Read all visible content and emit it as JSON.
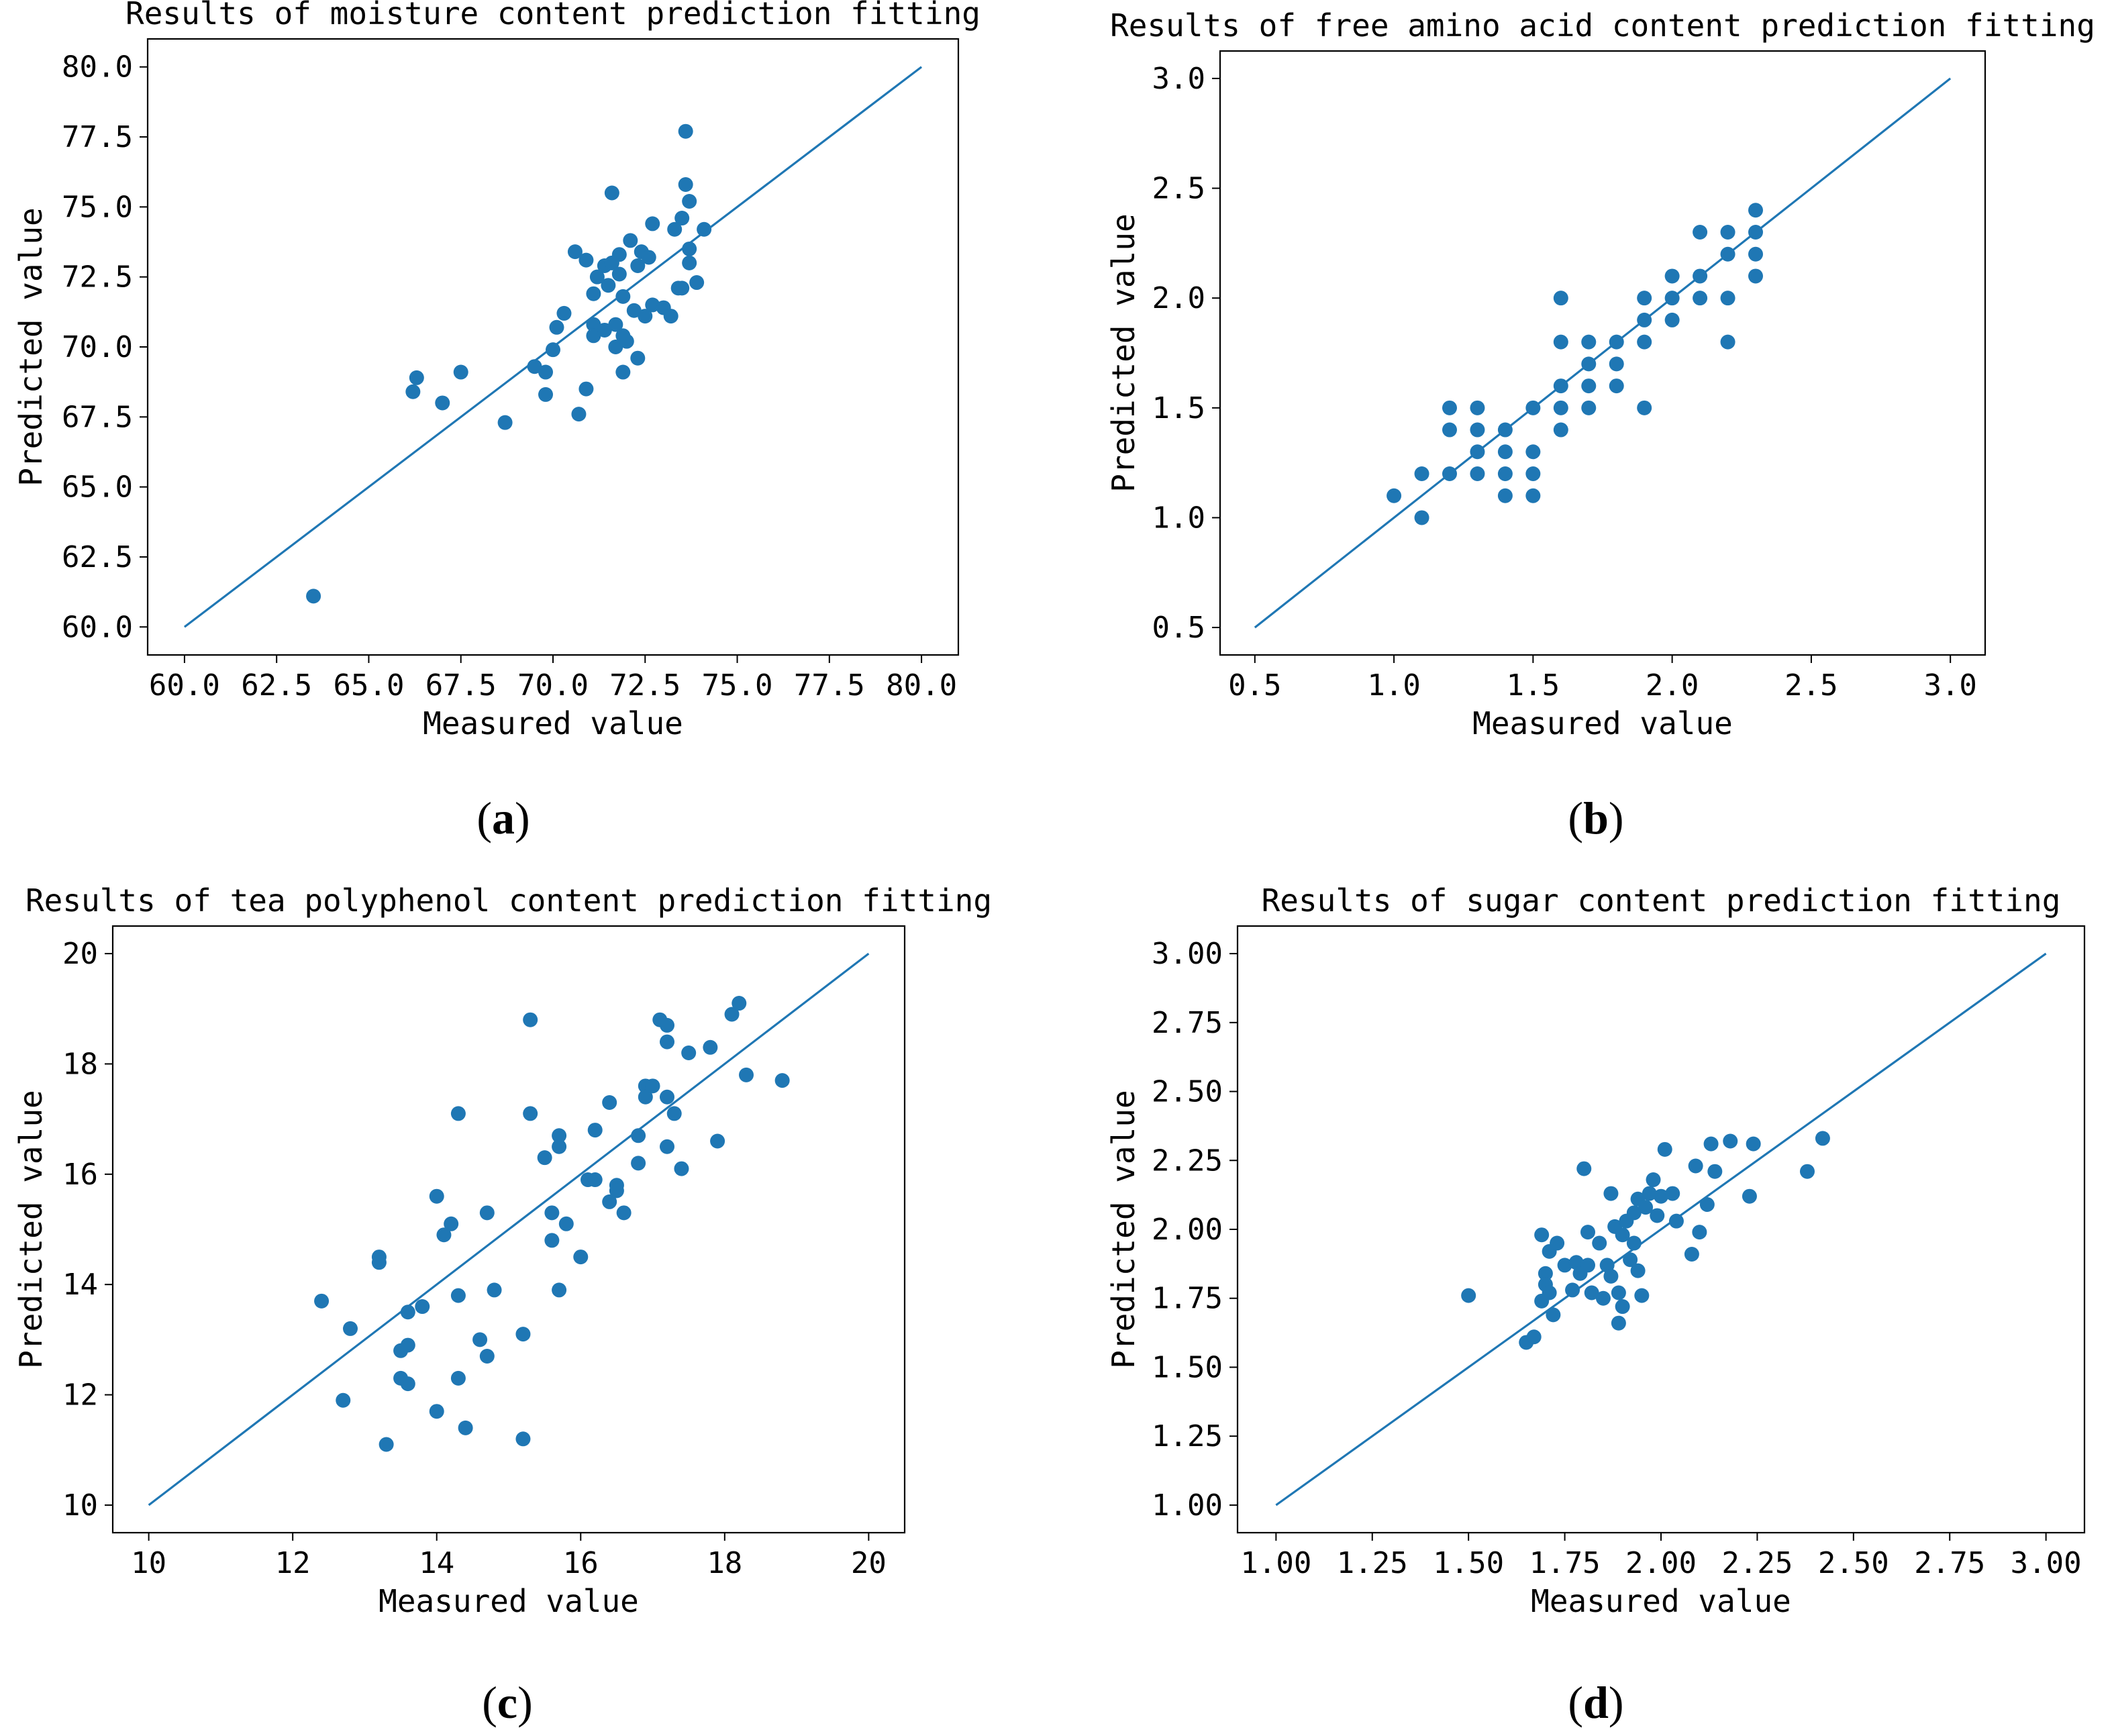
{
  "colors": {
    "series": "#1f77b4",
    "axis": "#000000"
  },
  "chart_data": [
    {
      "type": "scatter",
      "panel_label": "a",
      "title": "Results of moisture content prediction fitting",
      "xlabel": "Measured value",
      "ylabel": "Predicted value",
      "xlim": [
        59.0,
        81.0
      ],
      "ylim": [
        59.0,
        81.0
      ],
      "xticks": [
        60.0,
        62.5,
        65.0,
        67.5,
        70.0,
        72.5,
        75.0,
        77.5,
        80.0
      ],
      "yticks": [
        60.0,
        62.5,
        65.0,
        67.5,
        70.0,
        72.5,
        75.0,
        77.5,
        80.0
      ],
      "tick_format": 1,
      "fit_line": [
        [
          60,
          60
        ],
        [
          80,
          80
        ]
      ],
      "points": [
        [
          63.5,
          61.1
        ],
        [
          66.2,
          68.4
        ],
        [
          66.3,
          68.9
        ],
        [
          67.0,
          68.0
        ],
        [
          67.5,
          69.1
        ],
        [
          68.7,
          67.3
        ],
        [
          69.5,
          69.3
        ],
        [
          69.8,
          69.1
        ],
        [
          69.8,
          68.3
        ],
        [
          70.0,
          69.9
        ],
        [
          70.1,
          70.7
        ],
        [
          70.3,
          71.2
        ],
        [
          70.6,
          73.4
        ],
        [
          70.7,
          67.6
        ],
        [
          70.9,
          73.1
        ],
        [
          70.9,
          68.5
        ],
        [
          71.1,
          71.9
        ],
        [
          71.1,
          70.8
        ],
        [
          71.1,
          70.4
        ],
        [
          71.2,
          72.5
        ],
        [
          71.4,
          70.6
        ],
        [
          71.4,
          72.9
        ],
        [
          71.5,
          72.2
        ],
        [
          71.6,
          75.5
        ],
        [
          71.6,
          73.0
        ],
        [
          71.7,
          70.8
        ],
        [
          71.7,
          70.0
        ],
        [
          71.8,
          72.6
        ],
        [
          71.8,
          73.3
        ],
        [
          71.9,
          71.8
        ],
        [
          71.9,
          70.4
        ],
        [
          71.9,
          69.1
        ],
        [
          72.0,
          70.2
        ],
        [
          72.1,
          73.8
        ],
        [
          72.2,
          71.3
        ],
        [
          72.3,
          72.9
        ],
        [
          72.3,
          69.6
        ],
        [
          72.4,
          73.4
        ],
        [
          72.5,
          71.1
        ],
        [
          72.6,
          73.2
        ],
        [
          72.7,
          71.5
        ],
        [
          72.7,
          74.4
        ],
        [
          73.0,
          71.4
        ],
        [
          73.2,
          71.1
        ],
        [
          73.3,
          74.2
        ],
        [
          73.4,
          72.1
        ],
        [
          73.5,
          74.6
        ],
        [
          73.5,
          72.1
        ],
        [
          73.6,
          77.7
        ],
        [
          73.6,
          75.8
        ],
        [
          73.7,
          75.2
        ],
        [
          73.7,
          73.0
        ],
        [
          73.7,
          73.5
        ],
        [
          73.9,
          72.3
        ],
        [
          74.1,
          74.2
        ]
      ]
    },
    {
      "type": "scatter",
      "panel_label": "b",
      "title": "Results of free amino acid content prediction fitting",
      "xlabel": "Measured value",
      "ylabel": "Predicted value",
      "xlim": [
        0.375,
        3.125
      ],
      "ylim": [
        0.375,
        3.125
      ],
      "xticks": [
        0.5,
        1.0,
        1.5,
        2.0,
        2.5,
        3.0
      ],
      "yticks": [
        0.5,
        1.0,
        1.5,
        2.0,
        2.5,
        3.0
      ],
      "tick_format": 1,
      "fit_line": [
        [
          0.5,
          0.5
        ],
        [
          3.0,
          3.0
        ]
      ],
      "points": [
        [
          1.0,
          1.1
        ],
        [
          1.1,
          1.0
        ],
        [
          1.1,
          1.2
        ],
        [
          1.2,
          1.2
        ],
        [
          1.2,
          1.4
        ],
        [
          1.2,
          1.5
        ],
        [
          1.3,
          1.2
        ],
        [
          1.3,
          1.3
        ],
        [
          1.3,
          1.4
        ],
        [
          1.3,
          1.5
        ],
        [
          1.4,
          1.1
        ],
        [
          1.4,
          1.2
        ],
        [
          1.4,
          1.3
        ],
        [
          1.4,
          1.4
        ],
        [
          1.5,
          1.1
        ],
        [
          1.5,
          1.2
        ],
        [
          1.5,
          1.3
        ],
        [
          1.5,
          1.5
        ],
        [
          1.6,
          1.4
        ],
        [
          1.6,
          1.5
        ],
        [
          1.6,
          1.6
        ],
        [
          1.6,
          1.8
        ],
        [
          1.6,
          2.0
        ],
        [
          1.7,
          1.5
        ],
        [
          1.7,
          1.6
        ],
        [
          1.7,
          1.7
        ],
        [
          1.7,
          1.8
        ],
        [
          1.8,
          1.6
        ],
        [
          1.8,
          1.7
        ],
        [
          1.8,
          1.8
        ],
        [
          1.9,
          1.5
        ],
        [
          1.9,
          1.8
        ],
        [
          1.9,
          1.9
        ],
        [
          1.9,
          2.0
        ],
        [
          2.0,
          1.9
        ],
        [
          2.0,
          2.0
        ],
        [
          2.0,
          2.1
        ],
        [
          2.1,
          2.0
        ],
        [
          2.1,
          2.1
        ],
        [
          2.1,
          2.3
        ],
        [
          2.2,
          1.8
        ],
        [
          2.2,
          2.0
        ],
        [
          2.2,
          2.2
        ],
        [
          2.2,
          2.3
        ],
        [
          2.3,
          2.1
        ],
        [
          2.3,
          2.2
        ],
        [
          2.3,
          2.3
        ],
        [
          2.3,
          2.4
        ]
      ]
    },
    {
      "type": "scatter",
      "panel_label": "c",
      "title": "Results of tea polyphenol content prediction fitting",
      "xlabel": "Measured value",
      "ylabel": "Predicted value",
      "xlim": [
        9.5,
        20.5
      ],
      "ylim": [
        9.5,
        20.5
      ],
      "xticks": [
        10,
        12,
        14,
        16,
        18,
        20
      ],
      "yticks": [
        10,
        12,
        14,
        16,
        18,
        20
      ],
      "tick_format": 0,
      "fit_line": [
        [
          10,
          10
        ],
        [
          20,
          20
        ]
      ],
      "points": [
        [
          12.4,
          13.7
        ],
        [
          12.7,
          11.9
        ],
        [
          12.8,
          13.2
        ],
        [
          13.2,
          14.5
        ],
        [
          13.2,
          14.4
        ],
        [
          13.3,
          11.1
        ],
        [
          13.5,
          12.8
        ],
        [
          13.5,
          12.3
        ],
        [
          13.6,
          13.5
        ],
        [
          13.6,
          12.9
        ],
        [
          13.6,
          12.2
        ],
        [
          13.8,
          13.6
        ],
        [
          14.0,
          15.6
        ],
        [
          14.0,
          11.7
        ],
        [
          14.1,
          14.9
        ],
        [
          14.2,
          15.1
        ],
        [
          14.3,
          17.1
        ],
        [
          14.3,
          13.8
        ],
        [
          14.3,
          12.3
        ],
        [
          14.4,
          11.4
        ],
        [
          14.6,
          13.0
        ],
        [
          14.7,
          15.3
        ],
        [
          14.7,
          12.7
        ],
        [
          14.8,
          13.9
        ],
        [
          15.2,
          13.1
        ],
        [
          15.2,
          11.2
        ],
        [
          15.3,
          18.8
        ],
        [
          15.3,
          17.1
        ],
        [
          15.5,
          16.3
        ],
        [
          15.6,
          15.3
        ],
        [
          15.6,
          14.8
        ],
        [
          15.7,
          16.7
        ],
        [
          15.7,
          16.5
        ],
        [
          15.7,
          13.9
        ],
        [
          15.8,
          15.1
        ],
        [
          16.0,
          14.5
        ],
        [
          16.1,
          15.9
        ],
        [
          16.2,
          16.8
        ],
        [
          16.2,
          15.9
        ],
        [
          16.4,
          17.3
        ],
        [
          16.4,
          15.5
        ],
        [
          16.5,
          15.8
        ],
        [
          16.5,
          15.7
        ],
        [
          16.6,
          15.3
        ],
        [
          16.8,
          16.7
        ],
        [
          16.8,
          16.2
        ],
        [
          16.9,
          17.6
        ],
        [
          16.9,
          17.4
        ],
        [
          17.0,
          17.6
        ],
        [
          17.1,
          18.8
        ],
        [
          17.2,
          18.7
        ],
        [
          17.2,
          18.4
        ],
        [
          17.2,
          17.4
        ],
        [
          17.2,
          16.5
        ],
        [
          17.3,
          17.1
        ],
        [
          17.4,
          16.1
        ],
        [
          17.5,
          18.2
        ],
        [
          17.8,
          18.3
        ],
        [
          17.9,
          16.6
        ],
        [
          18.1,
          18.9
        ],
        [
          18.2,
          19.1
        ],
        [
          18.3,
          17.8
        ],
        [
          18.8,
          17.7
        ]
      ]
    },
    {
      "type": "scatter",
      "panel_label": "d",
      "title": "Results of sugar content prediction fitting",
      "xlabel": "Measured value",
      "ylabel": "Predicted value",
      "xlim": [
        0.9,
        3.1
      ],
      "ylim": [
        0.9,
        3.1
      ],
      "xticks": [
        1.0,
        1.25,
        1.5,
        1.75,
        2.0,
        2.25,
        2.5,
        2.75,
        3.0
      ],
      "yticks": [
        1.0,
        1.25,
        1.5,
        1.75,
        2.0,
        2.25,
        2.5,
        2.75,
        3.0
      ],
      "tick_format": 2,
      "fit_line": [
        [
          1.0,
          1.0
        ],
        [
          3.0,
          3.0
        ]
      ],
      "points": [
        [
          1.5,
          1.76
        ],
        [
          1.65,
          1.59
        ],
        [
          1.67,
          1.61
        ],
        [
          1.69,
          1.98
        ],
        [
          1.69,
          1.74
        ],
        [
          1.7,
          1.84
        ],
        [
          1.7,
          1.8
        ],
        [
          1.71,
          1.92
        ],
        [
          1.71,
          1.77
        ],
        [
          1.72,
          1.69
        ],
        [
          1.73,
          1.95
        ],
        [
          1.75,
          1.87
        ],
        [
          1.77,
          1.78
        ],
        [
          1.78,
          1.88
        ],
        [
          1.79,
          1.84
        ],
        [
          1.8,
          2.22
        ],
        [
          1.81,
          1.99
        ],
        [
          1.81,
          1.87
        ],
        [
          1.82,
          1.77
        ],
        [
          1.84,
          1.95
        ],
        [
          1.85,
          1.75
        ],
        [
          1.86,
          1.87
        ],
        [
          1.87,
          2.13
        ],
        [
          1.87,
          1.83
        ],
        [
          1.88,
          2.01
        ],
        [
          1.89,
          1.77
        ],
        [
          1.89,
          1.66
        ],
        [
          1.9,
          1.98
        ],
        [
          1.9,
          1.72
        ],
        [
          1.91,
          2.03
        ],
        [
          1.92,
          1.89
        ],
        [
          1.93,
          2.06
        ],
        [
          1.93,
          1.95
        ],
        [
          1.94,
          2.11
        ],
        [
          1.94,
          1.85
        ],
        [
          1.95,
          1.76
        ],
        [
          1.96,
          2.08
        ],
        [
          1.97,
          2.13
        ],
        [
          1.98,
          2.18
        ],
        [
          1.99,
          2.05
        ],
        [
          2.0,
          2.12
        ],
        [
          2.01,
          2.29
        ],
        [
          2.03,
          2.13
        ],
        [
          2.04,
          2.03
        ],
        [
          2.08,
          1.91
        ],
        [
          2.09,
          2.23
        ],
        [
          2.1,
          1.99
        ],
        [
          2.12,
          2.09
        ],
        [
          2.13,
          2.31
        ],
        [
          2.14,
          2.21
        ],
        [
          2.18,
          2.32
        ],
        [
          2.23,
          2.12
        ],
        [
          2.24,
          2.31
        ],
        [
          2.38,
          2.21
        ],
        [
          2.42,
          2.33
        ]
      ]
    }
  ]
}
